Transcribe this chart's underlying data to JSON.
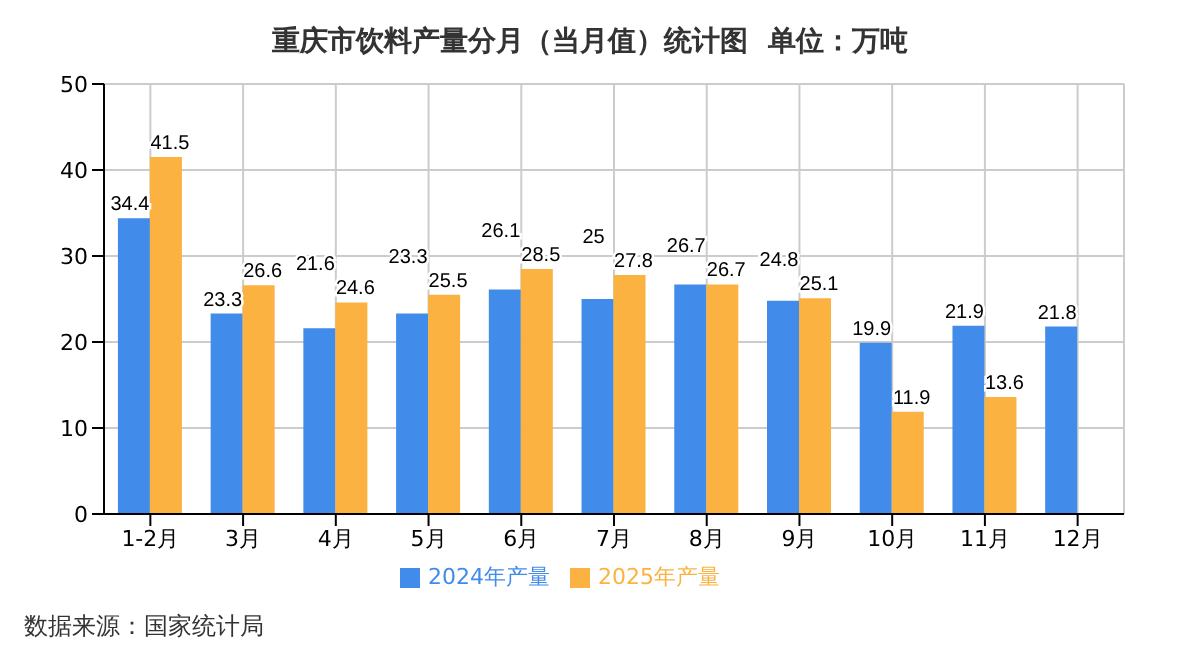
{
  "chart_data": {
    "type": "bar",
    "title": "重庆市饮料产量分月（当月值）统计图  单位：万吨",
    "categories": [
      "1-2月",
      "3月",
      "4月",
      "5月",
      "6月",
      "7月",
      "8月",
      "9月",
      "10月",
      "11月",
      "12月"
    ],
    "series": [
      {
        "name": "2024年产量",
        "color": "#418bea",
        "values": [
          34.4,
          23.3,
          21.6,
          23.3,
          26.1,
          25,
          26.7,
          24.8,
          19.9,
          21.9,
          21.8
        ]
      },
      {
        "name": "2025年产量",
        "color": "#fbb241",
        "values": [
          41.5,
          26.6,
          24.6,
          25.5,
          28.5,
          27.8,
          26.7,
          25.1,
          11.9,
          13.6,
          null
        ]
      }
    ],
    "ylim": [
      0,
      50
    ],
    "yticks": [
      0,
      10,
      20,
      30,
      40,
      50
    ],
    "grid": true,
    "legend": "bottom",
    "data_labels": true,
    "annotations": [
      "数据来源：国家统计局"
    ]
  }
}
